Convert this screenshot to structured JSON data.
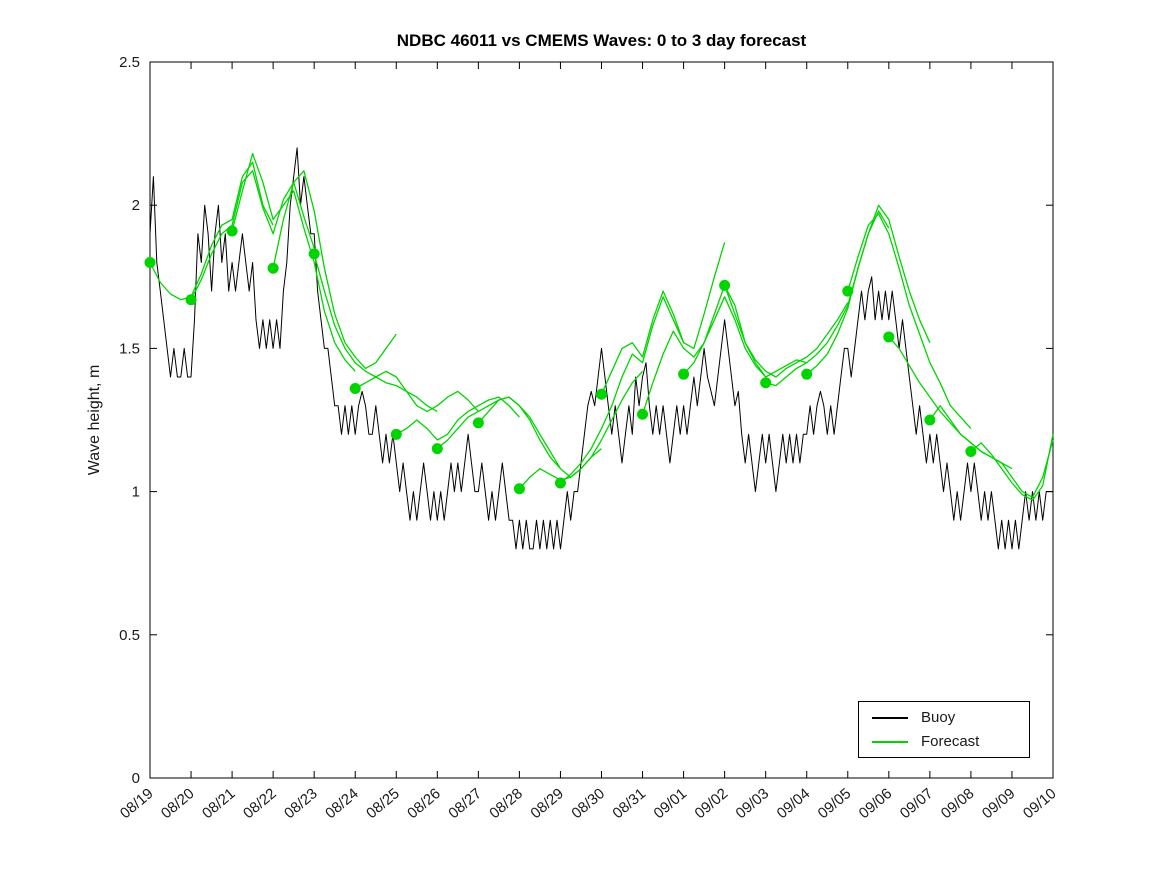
{
  "figure": {
    "title": "NDBC 46011 vs CMEMS Waves: 0 to 3 day forecast"
  },
  "legend": {
    "items": [
      {
        "label": "Buoy",
        "color": "#000000"
      },
      {
        "label": "Forecast",
        "color": "#00d500"
      }
    ]
  },
  "chart_data": {
    "type": "line",
    "title": "NDBC 46011 vs CMEMS Waves: 0 to 3 day forecast",
    "xlabel": "",
    "ylabel": "Wave height, m",
    "x_unit": "days since 08/19",
    "xlim_days": [
      0,
      22
    ],
    "ylim": [
      0,
      2.5
    ],
    "grid": false,
    "legend_position": "bottom-right",
    "y_ticks": [
      0,
      0.5,
      1,
      1.5,
      2,
      2.5
    ],
    "y_tick_labels": [
      "0",
      "0.5",
      "1",
      "1.5",
      "2",
      "2.5"
    ],
    "x_tick_labels": [
      "08/19",
      "08/20",
      "08/21",
      "08/22",
      "08/23",
      "08/24",
      "08/25",
      "08/26",
      "08/27",
      "08/28",
      "08/29",
      "08/30",
      "08/31",
      "09/01",
      "09/02",
      "09/03",
      "09/04",
      "09/05",
      "09/06",
      "09/07",
      "09/08",
      "09/09",
      "09/10"
    ],
    "x_tick_label_rotation_deg": 40,
    "series": [
      {
        "name": "Buoy",
        "style": "line",
        "color": "#000000",
        "start_day": 0,
        "dt_hours": 2,
        "values": [
          1.9,
          2.1,
          1.8,
          1.7,
          1.6,
          1.5,
          1.4,
          1.5,
          1.4,
          1.4,
          1.5,
          1.4,
          1.4,
          1.6,
          1.9,
          1.8,
          2.0,
          1.9,
          1.7,
          1.9,
          2.0,
          1.8,
          1.9,
          1.7,
          1.8,
          1.7,
          1.8,
          1.9,
          1.8,
          1.7,
          1.8,
          1.6,
          1.5,
          1.6,
          1.5,
          1.6,
          1.5,
          1.6,
          1.5,
          1.7,
          1.8,
          2.0,
          2.1,
          2.2,
          2.0,
          2.1,
          2.0,
          1.9,
          1.9,
          1.7,
          1.6,
          1.5,
          1.5,
          1.4,
          1.3,
          1.3,
          1.2,
          1.3,
          1.2,
          1.3,
          1.2,
          1.3,
          1.35,
          1.3,
          1.2,
          1.2,
          1.3,
          1.2,
          1.1,
          1.2,
          1.1,
          1.2,
          1.1,
          1.0,
          1.1,
          1.0,
          0.9,
          1.0,
          0.9,
          1.0,
          1.1,
          1.0,
          0.9,
          1.0,
          0.9,
          1.0,
          0.9,
          1.0,
          1.1,
          1.0,
          1.1,
          1.0,
          1.1,
          1.2,
          1.1,
          1.0,
          1.0,
          1.1,
          1.0,
          0.9,
          1.0,
          0.9,
          1.0,
          1.1,
          1.0,
          0.9,
          0.9,
          0.8,
          0.9,
          0.8,
          0.9,
          0.8,
          0.8,
          0.9,
          0.8,
          0.9,
          0.8,
          0.9,
          0.8,
          0.9,
          0.8,
          0.9,
          1.0,
          0.9,
          1.0,
          1.0,
          1.1,
          1.2,
          1.3,
          1.35,
          1.3,
          1.4,
          1.5,
          1.4,
          1.3,
          1.2,
          1.3,
          1.2,
          1.1,
          1.2,
          1.3,
          1.2,
          1.4,
          1.3,
          1.4,
          1.45,
          1.3,
          1.2,
          1.3,
          1.2,
          1.3,
          1.2,
          1.1,
          1.2,
          1.3,
          1.2,
          1.3,
          1.2,
          1.3,
          1.4,
          1.3,
          1.4,
          1.5,
          1.4,
          1.35,
          1.3,
          1.4,
          1.5,
          1.6,
          1.5,
          1.4,
          1.3,
          1.35,
          1.2,
          1.1,
          1.2,
          1.1,
          1.0,
          1.1,
          1.2,
          1.1,
          1.2,
          1.1,
          1.0,
          1.1,
          1.2,
          1.1,
          1.2,
          1.1,
          1.2,
          1.1,
          1.2,
          1.2,
          1.3,
          1.2,
          1.3,
          1.35,
          1.3,
          1.2,
          1.3,
          1.2,
          1.3,
          1.4,
          1.5,
          1.5,
          1.4,
          1.5,
          1.6,
          1.7,
          1.6,
          1.7,
          1.75,
          1.6,
          1.7,
          1.6,
          1.7,
          1.6,
          1.7,
          1.6,
          1.5,
          1.6,
          1.5,
          1.4,
          1.3,
          1.2,
          1.3,
          1.2,
          1.1,
          1.2,
          1.1,
          1.2,
          1.1,
          1.0,
          1.1,
          1.0,
          0.9,
          1.0,
          0.9,
          1.0,
          1.1,
          1.0,
          1.1,
          1.0,
          0.9,
          1.0,
          0.9,
          1.0,
          0.9,
          0.8,
          0.9,
          0.8,
          0.9,
          0.8,
          0.9,
          0.8,
          0.9,
          1.0,
          0.9,
          1.0,
          0.9,
          1.0,
          0.9,
          1.0,
          1.0,
          1.0
        ]
      },
      {
        "name": "Forecast",
        "style": "multi-line",
        "marker": "filled-circle-at-run-start",
        "color": "#00d500",
        "dt_hours": 6,
        "runs": [
          {
            "start_day": 0,
            "values": [
              1.8,
              1.73,
              1.69,
              1.67,
              1.68,
              1.76,
              1.86,
              1.93,
              1.95,
              2.1,
              2.15,
              2.0,
              1.93
            ]
          },
          {
            "start_day": 1,
            "values": [
              1.67,
              1.74,
              1.83,
              1.9,
              1.93,
              2.08,
              2.12,
              1.99,
              1.9,
              2.02,
              2.08,
              1.96,
              1.85
            ]
          },
          {
            "start_day": 2,
            "values": [
              1.91,
              2.05,
              2.18,
              2.08,
              1.95,
              2.0,
              2.05,
              1.92,
              1.8,
              1.63,
              1.52,
              1.46,
              1.42
            ]
          },
          {
            "start_day": 3,
            "values": [
              1.78,
              1.95,
              2.08,
              2.12,
              1.98,
              1.78,
              1.62,
              1.52,
              1.47,
              1.43,
              1.45,
              1.5,
              1.55
            ]
          },
          {
            "start_day": 4,
            "values": [
              1.83,
              1.7,
              1.58,
              1.5,
              1.45,
              1.42,
              1.4,
              1.38,
              1.37,
              1.35,
              1.33,
              1.3,
              1.28
            ]
          },
          {
            "start_day": 5,
            "values": [
              1.36,
              1.38,
              1.4,
              1.42,
              1.4,
              1.35,
              1.3,
              1.28,
              1.3,
              1.33,
              1.35,
              1.32,
              1.28
            ]
          },
          {
            "start_day": 6,
            "values": [
              1.2,
              1.22,
              1.25,
              1.22,
              1.18,
              1.2,
              1.25,
              1.28,
              1.3,
              1.32,
              1.33,
              1.3,
              1.26
            ]
          },
          {
            "start_day": 7,
            "values": [
              1.15,
              1.18,
              1.22,
              1.26,
              1.28,
              1.3,
              1.32,
              1.33,
              1.3,
              1.25,
              1.18,
              1.12,
              1.08
            ]
          },
          {
            "start_day": 8,
            "values": [
              1.24,
              1.28,
              1.32,
              1.33,
              1.3,
              1.26,
              1.2,
              1.14,
              1.08,
              1.05,
              1.08,
              1.12,
              1.15
            ]
          },
          {
            "start_day": 9,
            "values": [
              1.01,
              1.05,
              1.08,
              1.06,
              1.04,
              1.05,
              1.08,
              1.12,
              1.18,
              1.25,
              1.32,
              1.38,
              1.42
            ]
          },
          {
            "start_day": 10,
            "values": [
              1.03,
              1.06,
              1.1,
              1.15,
              1.22,
              1.3,
              1.4,
              1.48,
              1.45,
              1.58,
              1.68,
              1.6,
              1.52
            ]
          },
          {
            "start_day": 11,
            "values": [
              1.34,
              1.42,
              1.5,
              1.52,
              1.47,
              1.6,
              1.7,
              1.62,
              1.52,
              1.5,
              1.62,
              1.75,
              1.87
            ]
          },
          {
            "start_day": 12,
            "values": [
              1.27,
              1.38,
              1.48,
              1.56,
              1.5,
              1.47,
              1.52,
              1.62,
              1.72,
              1.65,
              1.52,
              1.45,
              1.4
            ]
          },
          {
            "start_day": 13,
            "values": [
              1.41,
              1.45,
              1.52,
              1.6,
              1.68,
              1.6,
              1.5,
              1.44,
              1.4,
              1.42,
              1.44,
              1.46,
              1.45
            ]
          },
          {
            "start_day": 14,
            "values": [
              1.72,
              1.62,
              1.52,
              1.46,
              1.42,
              1.4,
              1.43,
              1.45,
              1.47,
              1.5,
              1.55,
              1.6,
              1.66
            ]
          },
          {
            "start_day": 15,
            "values": [
              1.38,
              1.37,
              1.4,
              1.43,
              1.45,
              1.48,
              1.52,
              1.58,
              1.65,
              1.78,
              1.9,
              1.98,
              1.92
            ]
          },
          {
            "start_day": 16,
            "values": [
              1.41,
              1.44,
              1.48,
              1.55,
              1.64,
              1.78,
              1.9,
              2.0,
              1.95,
              1.82,
              1.7,
              1.6,
              1.52
            ]
          },
          {
            "start_day": 17,
            "values": [
              1.7,
              1.82,
              1.93,
              1.97,
              1.9,
              1.78,
              1.65,
              1.55,
              1.45,
              1.38,
              1.3,
              1.26,
              1.22
            ]
          },
          {
            "start_day": 18,
            "values": [
              1.54,
              1.5,
              1.44,
              1.38,
              1.33,
              1.28,
              1.24,
              1.2,
              1.17,
              1.14,
              1.12,
              1.1,
              1.08
            ]
          },
          {
            "start_day": 19,
            "values": [
              1.25,
              1.3,
              1.25,
              1.2,
              1.17,
              1.14,
              1.12,
              1.1,
              1.05,
              1.0,
              0.98,
              1.05,
              1.18
            ]
          },
          {
            "start_day": 20,
            "values": [
              1.14,
              1.17,
              1.13,
              1.08,
              1.03,
              0.99,
              0.97,
              1.02,
              1.2
            ]
          }
        ]
      }
    ]
  }
}
